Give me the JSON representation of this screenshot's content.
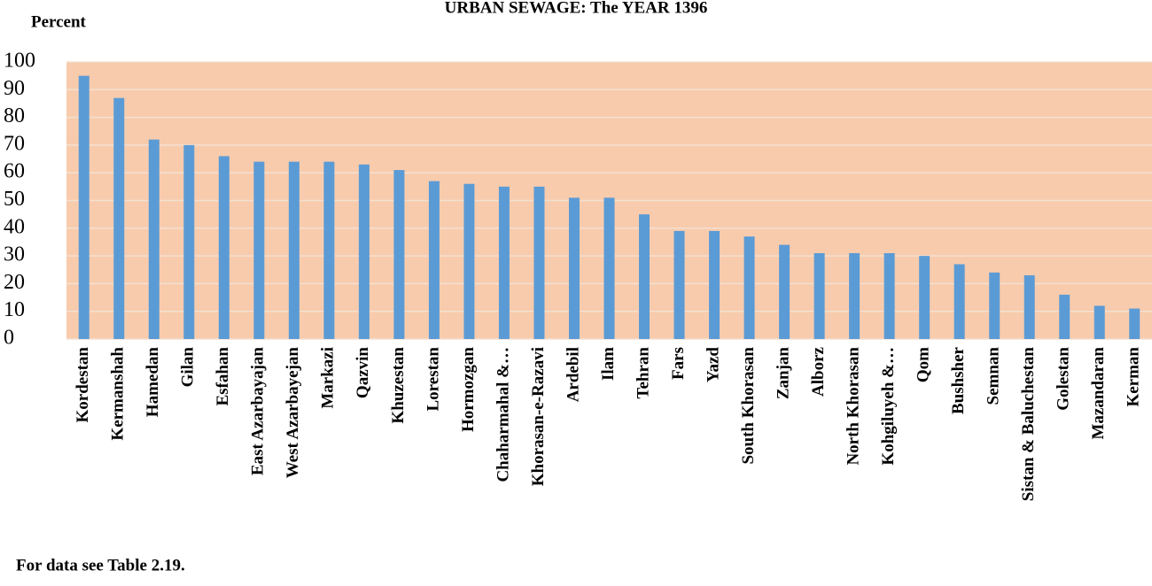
{
  "chart_data": {
    "type": "bar",
    "title": "URBAN SEWAGE: The YEAR 1396",
    "y_label": "Percent",
    "note": "For data see Table 2.19.",
    "categories": [
      "Kordestan",
      "Kermanshah",
      "Hamedan",
      "Gilan",
      "Esfahan",
      "East Azarbayajan",
      "West Azarbayejan",
      "Markazi",
      "Qazvin",
      "Khuzestan",
      "Lorestan",
      "Hormozgan",
      "Chaharmahal &…",
      "Khorasan-e-Razavi",
      "Ardebil",
      "Ilam",
      "Tehran",
      "Fars",
      "Yazd",
      "South Khorasan",
      "Zanjan",
      "Alborz",
      "North Khorasan",
      "Kohgiluyeh &…",
      "Qom",
      "Bushsher",
      "Semnan",
      "Sistan & Baluchestan",
      "Golestan",
      "Mazandaran",
      "Kerman"
    ],
    "values": [
      95,
      87,
      72,
      70,
      66,
      64,
      64,
      64,
      63,
      61,
      57,
      56,
      55,
      55,
      51,
      51,
      45,
      39,
      39,
      37,
      34,
      31,
      31,
      31,
      30,
      27,
      24,
      23,
      16,
      12,
      11
    ],
    "color": "#5b9bd5",
    "background": "#f8cbad",
    "ylim": [
      0,
      100
    ],
    "yticks": [
      0,
      10,
      20,
      30,
      40,
      50,
      60,
      70,
      80,
      90,
      100
    ],
    "grid": true
  }
}
